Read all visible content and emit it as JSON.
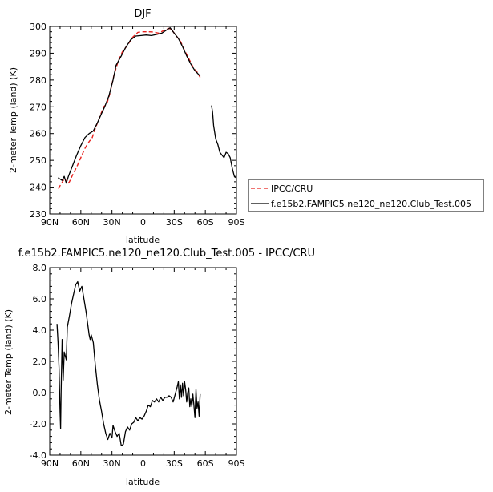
{
  "chart_data": [
    {
      "type": "line",
      "title": "DJF",
      "xlabel": "latitude",
      "ylabel": "2-meter Temp (land) (K)",
      "xlim": [
        90,
        -90
      ],
      "ylim": [
        230,
        300
      ],
      "x_ticks": [
        90,
        60,
        30,
        0,
        -30,
        -60,
        -90
      ],
      "x_tick_labels": [
        "90N",
        "60N",
        "30N",
        "0",
        "30S",
        "60S",
        "90S"
      ],
      "y_ticks": [
        230,
        240,
        250,
        260,
        270,
        280,
        290,
        300
      ],
      "y_tick_labels": [
        "230",
        "240",
        "250",
        "260",
        "270",
        "280",
        "290",
        "300"
      ],
      "legend_position": "right",
      "series": [
        {
          "name": "IPCC/CRU",
          "color": "#e8201c",
          "dash": "dashed",
          "segments": [
            [
              [
                82,
                239.5
              ],
              [
                79,
                241
              ],
              [
                77,
                242.5
              ],
              [
                75,
                243
              ],
              [
                73,
                241
              ],
              [
                71,
                242
              ],
              [
                68,
                244.5
              ],
              [
                64,
                247.5
              ],
              [
                60,
                251
              ],
              [
                56,
                254.5
              ],
              [
                52,
                257
              ],
              [
                49,
                258.5
              ],
              [
                46,
                262
              ],
              [
                42,
                266
              ],
              [
                38,
                270
              ],
              [
                35,
                271
              ],
              [
                32,
                275
              ],
              [
                28,
                282
              ],
              [
                24,
                287
              ],
              [
                20,
                290.5
              ],
              [
                15,
                293
              ],
              [
                10,
                296
              ],
              [
                5,
                297.8
              ],
              [
                0,
                298
              ],
              [
                -5,
                298
              ],
              [
                -10,
                297.9
              ],
              [
                -15,
                297.5
              ],
              [
                -20,
                298.5
              ],
              [
                -25,
                299.3
              ],
              [
                -28,
                298.5
              ],
              [
                -32,
                296.5
              ],
              [
                -36,
                294.5
              ],
              [
                -40,
                291
              ],
              [
                -44,
                288
              ],
              [
                -48,
                285
              ],
              [
                -52,
                283
              ],
              [
                -55,
                281
              ]
            ]
          ]
        },
        {
          "name": "f.e15b2.FAMPIC5.ne120_ne120.Club_Test.005",
          "color": "#000000",
          "dash": "solid",
          "segments": [
            [
              [
                82,
                243.5
              ],
              [
                80,
                243
              ],
              [
                78,
                242.5
              ],
              [
                76,
                244
              ],
              [
                74,
                241.5
              ],
              [
                72,
                244
              ],
              [
                70,
                246
              ],
              [
                67,
                249
              ],
              [
                64,
                252
              ],
              [
                60,
                255.5
              ],
              [
                56,
                258.5
              ],
              [
                52,
                260
              ],
              [
                48,
                261
              ],
              [
                44,
                264
              ],
              [
                40,
                267.5
              ],
              [
                37,
                270
              ],
              [
                33,
                274
              ],
              [
                29,
                280
              ],
              [
                26,
                285.5
              ],
              [
                21,
                289
              ],
              [
                17,
                292
              ],
              [
                12,
                295
              ],
              [
                7,
                296.4
              ],
              [
                2,
                296.6
              ],
              [
                -3,
                296.8
              ],
              [
                -8,
                296.6
              ],
              [
                -13,
                297
              ],
              [
                -18,
                297.5
              ],
              [
                -22,
                298.5
              ],
              [
                -26,
                299.5
              ],
              [
                -30,
                297.5
              ],
              [
                -34,
                295.5
              ],
              [
                -38,
                292.5
              ],
              [
                -42,
                289
              ],
              [
                -46,
                286
              ],
              [
                -50,
                283.5
              ],
              [
                -55,
                281.5
              ]
            ],
            [
              [
                -66,
                270.5
              ],
              [
                -67,
                268
              ],
              [
                -68,
                263
              ],
              [
                -70,
                258
              ],
              [
                -72,
                256
              ],
              [
                -74,
                253
              ],
              [
                -76,
                252
              ],
              [
                -78,
                251
              ],
              [
                -80,
                253
              ],
              [
                -82,
                252.5
              ],
              [
                -84,
                251
              ],
              [
                -86,
                247
              ],
              [
                -88,
                244
              ],
              [
                -89,
                243.5
              ]
            ]
          ]
        }
      ]
    },
    {
      "type": "line",
      "title": "f.e15b2.FAMPIC5.ne120_ne120.Club_Test.005 - IPCC/CRU",
      "xlabel": "latitude",
      "ylabel": "2-meter Temp (land) (K)",
      "xlim": [
        90,
        -90
      ],
      "ylim": [
        -4,
        8
      ],
      "x_ticks": [
        90,
        60,
        30,
        0,
        -30,
        -60,
        -90
      ],
      "x_tick_labels": [
        "90N",
        "60N",
        "30N",
        "0",
        "30S",
        "60S",
        "90S"
      ],
      "y_ticks": [
        -4,
        -2,
        0,
        2,
        4,
        6,
        8
      ],
      "y_tick_labels": [
        "-4.0",
        "-2.0",
        "0.0",
        "2.0",
        "4.0",
        "6.0",
        "8.0"
      ],
      "series": [
        {
          "color": "#000000",
          "dash": "solid",
          "segments": [
            [
              [
                83,
                4.4
              ],
              [
                82,
                3.2
              ],
              [
                81,
                1.5
              ],
              [
                80,
                -1.2
              ],
              [
                79.5,
                -2.3
              ],
              [
                79,
                0
              ],
              [
                78,
                3.4
              ],
              [
                77,
                0.8
              ],
              [
                76,
                2.6
              ],
              [
                74,
                2.1
              ],
              [
                73,
                4.2
              ],
              [
                71,
                4.9
              ],
              [
                69,
                5.7
              ],
              [
                67,
                6.3
              ],
              [
                65,
                6.9
              ],
              [
                63,
                7.1
              ],
              [
                61,
                6.5
              ],
              [
                59,
                6.8
              ],
              [
                57,
                6
              ],
              [
                55,
                5.2
              ],
              [
                53,
                4.2
              ],
              [
                52,
                3.7
              ],
              [
                51,
                3.4
              ],
              [
                50,
                3.7
              ],
              [
                48,
                3.2
              ],
              [
                46,
                1.7
              ],
              [
                44,
                0.5
              ],
              [
                42,
                -0.5
              ],
              [
                40,
                -1.2
              ],
              [
                38,
                -2
              ],
              [
                36,
                -2.6
              ],
              [
                34,
                -3
              ],
              [
                32,
                -2.6
              ],
              [
                30,
                -2.9
              ],
              [
                29,
                -2.1
              ],
              [
                27,
                -2.5
              ],
              [
                25,
                -2.8
              ],
              [
                23,
                -2.6
              ],
              [
                21,
                -3.4
              ],
              [
                19,
                -3.3
              ],
              [
                17,
                -2.5
              ],
              [
                15,
                -2.2
              ],
              [
                13,
                -2.4
              ],
              [
                11,
                -2
              ],
              [
                9,
                -1.9
              ],
              [
                7,
                -1.6
              ],
              [
                5,
                -1.8
              ],
              [
                3,
                -1.6
              ],
              [
                1,
                -1.7
              ],
              [
                -1,
                -1.5
              ],
              [
                -3,
                -1.2
              ],
              [
                -5,
                -0.8
              ],
              [
                -7,
                -0.9
              ],
              [
                -9,
                -0.5
              ],
              [
                -11,
                -0.6
              ],
              [
                -13,
                -0.4
              ],
              [
                -15,
                -0.6
              ],
              [
                -17,
                -0.3
              ],
              [
                -19,
                -0.5
              ],
              [
                -21,
                -0.3
              ],
              [
                -23,
                -0.3
              ],
              [
                -25,
                -0.2
              ],
              [
                -27,
                -0.3
              ],
              [
                -29,
                -0.6
              ],
              [
                -31,
                -0.1
              ],
              [
                -33,
                0.4
              ],
              [
                -34,
                0.7
              ],
              [
                -35,
                -0.4
              ],
              [
                -36,
                0.5
              ],
              [
                -37,
                -0.3
              ],
              [
                -38,
                0.6
              ],
              [
                -39,
                -0.2
              ],
              [
                -40,
                0.7
              ],
              [
                -41,
                0.2
              ],
              [
                -42,
                -0.6
              ],
              [
                -43,
                0
              ],
              [
                -44,
                0.3
              ],
              [
                -45,
                -0.9
              ],
              [
                -46,
                -0.4
              ],
              [
                -47,
                -0.9
              ],
              [
                -48,
                -0.1
              ],
              [
                -49,
                -0.8
              ],
              [
                -50,
                -1.6
              ],
              [
                -51,
                0.2
              ],
              [
                -52,
                -1
              ],
              [
                -53,
                -0.6
              ],
              [
                -54,
                -1.5
              ],
              [
                -55,
                -0.1
              ]
            ]
          ]
        }
      ]
    }
  ]
}
